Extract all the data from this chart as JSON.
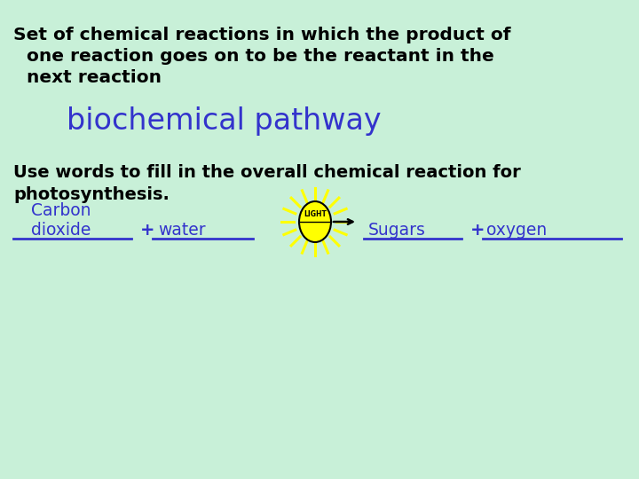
{
  "bg_color": "#c8f0d8",
  "title_text_line1": "Set of chemical reactions in which the product of",
  "title_text_line2": "one reaction goes on to be the reactant in the",
  "title_text_line3": "next reaction",
  "answer_text": "biochemical pathway",
  "question_line1": "Use words to fill in the overall chemical reaction for",
  "question_line2": "photosynthesis.",
  "label1_line1": "Carbon",
  "label1_line2": "dioxide",
  "plus1": "+",
  "label2": "water",
  "light_text": "LIGHT",
  "label3": "Sugars",
  "plus2": "+",
  "label4": "oxygen",
  "title_color": "#000000",
  "answer_color": "#3333cc",
  "question_color": "#000000",
  "label_color": "#3333cc",
  "sun_body_color": "#ffff00",
  "sun_outline_color": "#000000",
  "sun_ray_color": "#ffff00",
  "light_text_color": "#000000",
  "arrow_color": "#000000",
  "underline_color": "#3333cc"
}
